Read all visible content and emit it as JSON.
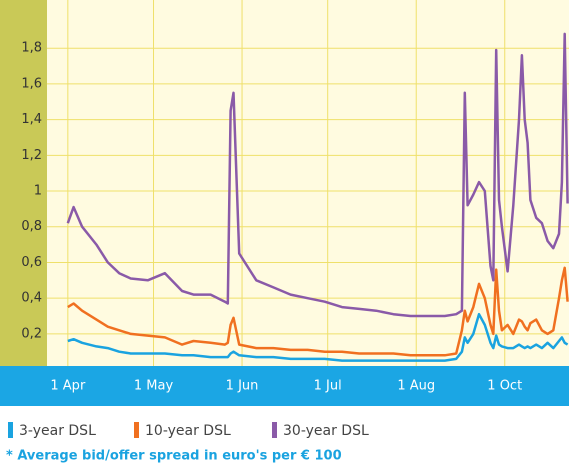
{
  "chart_data": {
    "type": "line",
    "x": [
      0,
      2,
      5,
      10,
      14,
      18,
      22,
      28,
      34,
      40,
      44,
      50,
      55,
      56,
      57,
      58,
      60,
      66,
      72,
      78,
      84,
      90,
      96,
      102,
      108,
      114,
      120,
      126,
      132,
      136,
      138,
      139,
      140,
      142,
      144,
      146,
      148,
      149,
      150,
      151,
      152,
      154,
      156,
      158,
      159,
      160,
      161,
      162,
      164,
      166,
      168,
      170,
      172,
      173,
      174,
      175
    ],
    "xlim": [
      -7.3,
      175.5
    ],
    "xticks": [
      {
        "value": 0,
        "label": "1 Apr"
      },
      {
        "value": 30,
        "label": "1 May"
      },
      {
        "value": 61,
        "label": "1 Jun"
      },
      {
        "value": 91,
        "label": "1 Jul"
      },
      {
        "value": 122,
        "label": "1 Aug"
      },
      {
        "value": 153,
        "label": "1 Oct"
      }
    ],
    "ylim": [
      0.02,
      2.07
    ],
    "yticks": [
      {
        "value": 0.2,
        "label": "0,2"
      },
      {
        "value": 0.4,
        "label": "0,4"
      },
      {
        "value": 0.6,
        "label": "0,6"
      },
      {
        "value": 0.8,
        "label": "0,8"
      },
      1,
      {
        "value": 1.2,
        "label": "1,2"
      },
      {
        "value": 1.4,
        "label": "1,4"
      },
      {
        "value": 1.6,
        "label": "1,6"
      },
      {
        "value": 1.8,
        "label": "1,8"
      }
    ],
    "grid": true,
    "series": [
      {
        "name": "3-year DSL",
        "color": "#1aa3e0",
        "values": [
          0.16,
          0.17,
          0.15,
          0.13,
          0.12,
          0.1,
          0.09,
          0.09,
          0.09,
          0.08,
          0.08,
          0.07,
          0.07,
          0.07,
          0.09,
          0.1,
          0.08,
          0.07,
          0.07,
          0.06,
          0.06,
          0.06,
          0.05,
          0.05,
          0.05,
          0.05,
          0.05,
          0.05,
          0.05,
          0.06,
          0.1,
          0.18,
          0.15,
          0.2,
          0.31,
          0.25,
          0.15,
          0.12,
          0.19,
          0.14,
          0.13,
          0.12,
          0.12,
          0.14,
          0.13,
          0.12,
          0.13,
          0.12,
          0.14,
          0.12,
          0.15,
          0.12,
          0.16,
          0.18,
          0.15,
          0.14
        ]
      },
      {
        "name": "10-year DSL",
        "color": "#f07020",
        "values": [
          0.35,
          0.37,
          0.33,
          0.28,
          0.24,
          0.22,
          0.2,
          0.19,
          0.18,
          0.14,
          0.16,
          0.15,
          0.14,
          0.15,
          0.25,
          0.29,
          0.14,
          0.12,
          0.12,
          0.11,
          0.11,
          0.1,
          0.1,
          0.09,
          0.09,
          0.09,
          0.08,
          0.08,
          0.08,
          0.09,
          0.22,
          0.33,
          0.27,
          0.35,
          0.48,
          0.4,
          0.25,
          0.2,
          0.56,
          0.33,
          0.22,
          0.25,
          0.2,
          0.28,
          0.27,
          0.24,
          0.22,
          0.26,
          0.28,
          0.22,
          0.2,
          0.22,
          0.4,
          0.5,
          0.57,
          0.38
        ]
      },
      {
        "name": "30-year DSL",
        "color": "#8a5aa8",
        "values": [
          0.82,
          0.91,
          0.8,
          0.7,
          0.6,
          0.54,
          0.51,
          0.5,
          0.54,
          0.44,
          0.42,
          0.42,
          0.38,
          0.37,
          1.45,
          1.55,
          0.65,
          0.5,
          0.46,
          0.42,
          0.4,
          0.38,
          0.35,
          0.34,
          0.33,
          0.31,
          0.3,
          0.3,
          0.3,
          0.31,
          0.33,
          1.55,
          0.92,
          0.98,
          1.05,
          1.0,
          0.58,
          0.5,
          1.79,
          0.95,
          0.8,
          0.55,
          0.92,
          1.4,
          1.76,
          1.4,
          1.27,
          0.95,
          0.85,
          0.82,
          0.72,
          0.68,
          0.76,
          1.05,
          1.88,
          0.93
        ]
      }
    ],
    "footnote": "* Average bid/offer spread in euro's per € 100"
  }
}
